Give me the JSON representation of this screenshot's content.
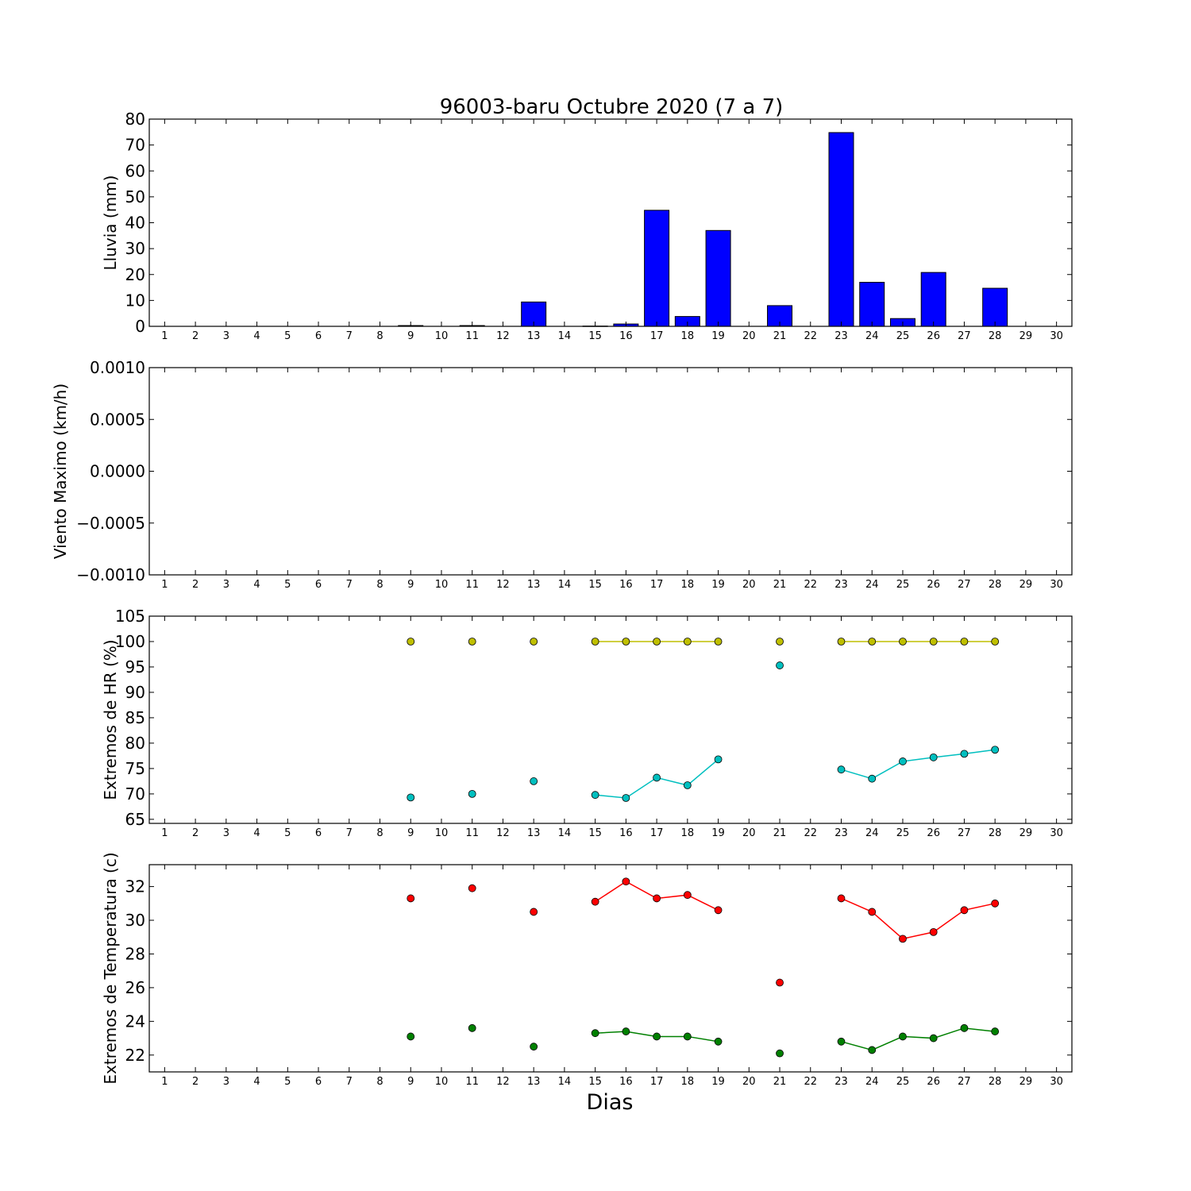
{
  "title": "96003-baru Octubre 2020  (7 a 7)",
  "xlabel": "Dias",
  "days": [
    1,
    2,
    3,
    4,
    5,
    6,
    7,
    8,
    9,
    10,
    11,
    12,
    13,
    14,
    15,
    16,
    17,
    18,
    19,
    20,
    21,
    22,
    23,
    24,
    25,
    26,
    27,
    28,
    29,
    30
  ],
  "chart_data": [
    {
      "type": "bar",
      "ylabel": "Lluvia (mm)",
      "ylim": [
        0,
        80
      ],
      "yticks": [
        0,
        10,
        20,
        30,
        40,
        50,
        60,
        70,
        80
      ],
      "ytick_labels": [
        "0",
        "10",
        "20",
        "30",
        "40",
        "50",
        "60",
        "70",
        "80"
      ],
      "x": [
        9,
        11,
        15,
        16,
        17,
        18,
        19,
        21,
        23,
        24,
        25,
        26,
        28
      ],
      "values": [
        0.3,
        0.3,
        0.1,
        0.9,
        44.8,
        3.8,
        37.0,
        8.0,
        74.8,
        17.0,
        3.0,
        20.8,
        14.7
      ],
      "extra_bars": [
        {
          "x": 13,
          "value": 9.4
        }
      ],
      "color": "#0000ff"
    },
    {
      "type": "line",
      "ylabel": "Viento Maximo (km/h)",
      "ylim": [
        -0.001,
        0.001
      ],
      "yticks": [
        -0.001,
        -0.0005,
        0,
        0.0005,
        0.001
      ],
      "ytick_labels": [
        "−0.0010",
        "−0.0005",
        "0.0000",
        "0.0005",
        "0.0010"
      ],
      "series": []
    },
    {
      "type": "line",
      "ylabel": "Extremos de HR (%)",
      "ylim": [
        64.2,
        105
      ],
      "yticks": [
        65,
        70,
        75,
        80,
        85,
        90,
        95,
        100,
        105
      ],
      "ytick_labels": [
        "65",
        "70",
        "75",
        "80",
        "85",
        "90",
        "95",
        "100",
        "105"
      ],
      "series": [
        {
          "color": "#bfbf00",
          "x": [
            9,
            11,
            13,
            15,
            16,
            17,
            18,
            19,
            21,
            23,
            24,
            25,
            26,
            27,
            28
          ],
          "values": [
            100,
            100,
            100,
            100,
            100,
            100,
            100,
            100,
            100,
            100,
            100,
            100,
            100,
            100,
            100
          ]
        },
        {
          "color": "#00bfbf",
          "x": [
            9,
            11,
            13,
            15,
            16,
            17,
            18,
            19,
            21,
            23,
            24,
            25,
            26,
            27,
            28
          ],
          "values": [
            69.3,
            70.0,
            72.5,
            69.8,
            69.2,
            73.2,
            71.7,
            76.8,
            95.3,
            74.8,
            73.0,
            76.4,
            77.2,
            77.9,
            78.7
          ]
        }
      ]
    },
    {
      "type": "line",
      "ylabel": "Extremos de Temperatura (c)",
      "ylim": [
        21.0,
        33.3
      ],
      "yticks": [
        22,
        24,
        26,
        28,
        30,
        32
      ],
      "ytick_labels": [
        "22",
        "24",
        "26",
        "28",
        "30",
        "32"
      ],
      "series": [
        {
          "color": "#ff0000",
          "x": [
            9,
            11,
            13,
            15,
            16,
            17,
            18,
            19,
            21,
            23,
            24,
            25,
            26,
            27,
            28
          ],
          "values": [
            31.3,
            31.9,
            30.5,
            31.1,
            32.3,
            31.3,
            31.5,
            30.6,
            26.3,
            31.3,
            30.5,
            28.9,
            29.3,
            30.6,
            31.0
          ]
        },
        {
          "color": "#008000",
          "x": [
            9,
            11,
            13,
            15,
            16,
            17,
            18,
            19,
            21,
            23,
            24,
            25,
            26,
            27,
            28
          ],
          "values": [
            23.1,
            23.6,
            22.5,
            23.3,
            23.4,
            23.1,
            23.1,
            22.8,
            22.1,
            22.8,
            22.3,
            23.1,
            23.0,
            23.6,
            23.4
          ]
        }
      ]
    }
  ]
}
